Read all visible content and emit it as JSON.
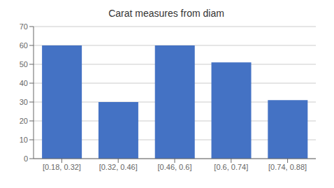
{
  "chart_data": {
    "type": "bar",
    "title": "Carat measures from diam",
    "categories": [
      "[0.18, 0.32]",
      "[0.32, 0.46]",
      "[0.46, 0.6]",
      "[0.6, 0.74]",
      "[0.74, 0.88]"
    ],
    "values": [
      60,
      30,
      60,
      51,
      31
    ],
    "color": "#4472C4",
    "ylim": [
      0,
      70
    ],
    "yticks": [
      0,
      10,
      20,
      30,
      40,
      50,
      60,
      70
    ],
    "grid": true
  }
}
